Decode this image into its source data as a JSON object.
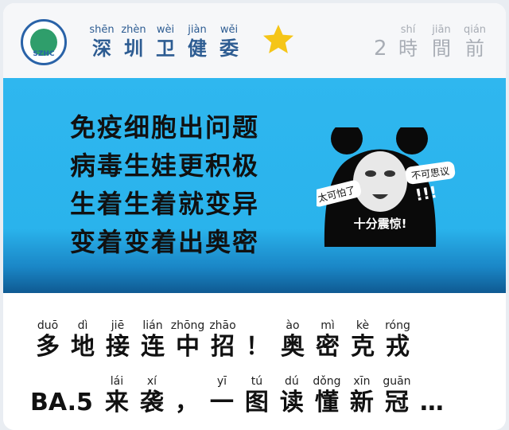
{
  "header": {
    "logo_text": "SZHC",
    "title": [
      {
        "py": "shēn",
        "hz": "深"
      },
      {
        "py": "zhèn",
        "hz": "圳"
      },
      {
        "py": "wèi",
        "hz": "卫"
      },
      {
        "py": "jiàn",
        "hz": "健"
      },
      {
        "py": "wěi",
        "hz": "委"
      }
    ],
    "star_color": "#f5c518",
    "time_number": "2",
    "time_unit": [
      {
        "py": "shí",
        "hz": "時"
      },
      {
        "py": "jiān",
        "hz": "間"
      },
      {
        "py": "qián",
        "hz": "前"
      }
    ]
  },
  "banner": {
    "background": "#2fb7ef",
    "poem_lines": [
      "免疫细胞出问题",
      "病毒生娃更积极",
      "生着生着就变异",
      "变着变着出奥密"
    ],
    "meme": {
      "left_bubble": "太可怕了",
      "right_bubble": "不可思议",
      "exclaim": "!!!",
      "caption": "十分震惊!"
    }
  },
  "headline": {
    "row1": [
      {
        "py": "duō",
        "hz": "多"
      },
      {
        "py": "dì",
        "hz": "地"
      },
      {
        "py": "jiē",
        "hz": "接"
      },
      {
        "py": "lián",
        "hz": "连"
      },
      {
        "py": "zhōng",
        "hz": "中"
      },
      {
        "py": "zhāo",
        "hz": "招"
      },
      {
        "py": "",
        "hz": "！"
      },
      {
        "py": "ào",
        "hz": "奥"
      },
      {
        "py": "mì",
        "hz": "密"
      },
      {
        "py": "kè",
        "hz": "克"
      },
      {
        "py": "róng",
        "hz": "戎"
      }
    ],
    "row2_latin": "BA.5",
    "row2": [
      {
        "py": "lái",
        "hz": "来"
      },
      {
        "py": "xí",
        "hz": "袭"
      },
      {
        "py": "",
        "hz": "，"
      },
      {
        "py": "yī",
        "hz": "一"
      },
      {
        "py": "tú",
        "hz": "图"
      },
      {
        "py": "dú",
        "hz": "读"
      },
      {
        "py": "dǒng",
        "hz": "懂"
      },
      {
        "py": "xīn",
        "hz": "新"
      },
      {
        "py": "guān",
        "hz": "冠"
      },
      {
        "py": "",
        "hz": "…"
      }
    ]
  }
}
